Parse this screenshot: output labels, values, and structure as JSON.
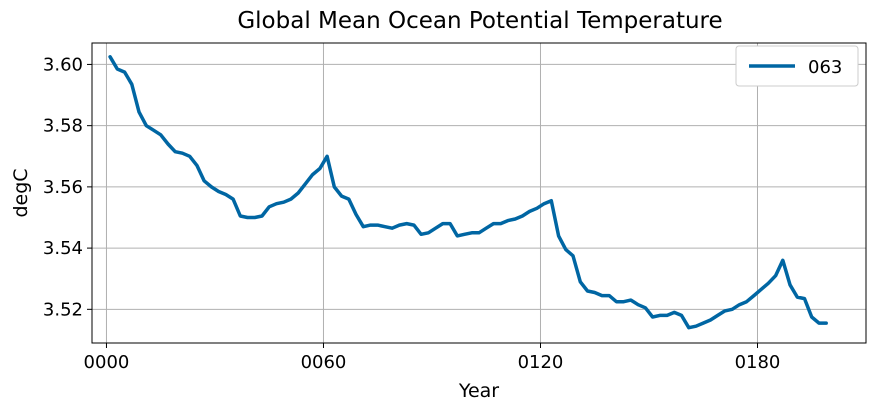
{
  "chart_data": {
    "type": "line",
    "title": "Global Mean Ocean Potential Temperature",
    "xlabel": "Year",
    "ylabel": "degC",
    "xlim": [
      -4,
      210
    ],
    "ylim": [
      3.509,
      3.607
    ],
    "x_ticks": [
      0,
      60,
      120,
      180
    ],
    "x_tick_labels": [
      "0000",
      "0060",
      "0120",
      "0180"
    ],
    "y_ticks": [
      3.52,
      3.54,
      3.56,
      3.58,
      3.6
    ],
    "y_tick_labels": [
      "3.52",
      "3.54",
      "3.56",
      "3.58",
      "3.60"
    ],
    "grid": true,
    "legend": "top-right",
    "series": [
      {
        "name": "063",
        "color": "#0066a3",
        "x": [
          1,
          3,
          5,
          7,
          9,
          11,
          13,
          15,
          17,
          19,
          21,
          23,
          25,
          27,
          29,
          31,
          33,
          35,
          37,
          39,
          41,
          43,
          45,
          47,
          49,
          51,
          53,
          55,
          57,
          59,
          61,
          63,
          65,
          67,
          69,
          71,
          73,
          75,
          77,
          79,
          81,
          83,
          85,
          87,
          89,
          91,
          93,
          95,
          97,
          99,
          101,
          103,
          105,
          107,
          109,
          111,
          113,
          115,
          117,
          119,
          121,
          123,
          125,
          127,
          129,
          131,
          133,
          135,
          137,
          139,
          141,
          143,
          145,
          147,
          149,
          151,
          153,
          155,
          157,
          159,
          161,
          163,
          165,
          167,
          169,
          171,
          173,
          175,
          177,
          179,
          181,
          183,
          185,
          187,
          189,
          191,
          193,
          195,
          197,
          199
        ],
        "values": [
          3.6025,
          3.5985,
          3.5975,
          3.5935,
          3.5845,
          3.58,
          3.5785,
          3.577,
          3.574,
          3.5715,
          3.571,
          3.57,
          3.567,
          3.562,
          3.56,
          3.5585,
          3.5575,
          3.556,
          3.5505,
          3.55,
          3.55,
          3.5505,
          3.5535,
          3.5545,
          3.555,
          3.556,
          3.558,
          3.561,
          3.564,
          3.566,
          3.57,
          3.56,
          3.557,
          3.556,
          3.551,
          3.547,
          3.5475,
          3.5475,
          3.547,
          3.5465,
          3.5475,
          3.548,
          3.5475,
          3.5445,
          3.545,
          3.5465,
          3.548,
          3.548,
          3.544,
          3.5445,
          3.545,
          3.545,
          3.5465,
          3.548,
          3.548,
          3.549,
          3.5495,
          3.5505,
          3.552,
          3.553,
          3.5545,
          3.5555,
          3.544,
          3.5395,
          3.5375,
          3.529,
          3.526,
          3.5255,
          3.5245,
          3.5245,
          3.5225,
          3.5225,
          3.523,
          3.5215,
          3.5205,
          3.5175,
          3.518,
          3.518,
          3.519,
          3.518,
          3.514,
          3.5145,
          3.5155,
          3.5165,
          3.518,
          3.5195,
          3.52,
          3.5215,
          3.5225,
          3.5245,
          3.5265,
          3.5285,
          3.531,
          3.536,
          3.528,
          3.524,
          3.5235,
          3.5175,
          3.5155,
          3.5155
        ]
      }
    ]
  }
}
